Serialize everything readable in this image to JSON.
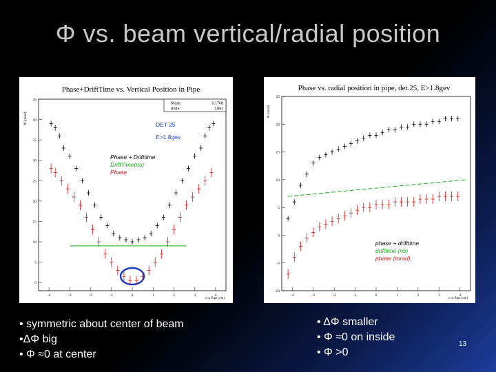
{
  "slide_title": "Φ vs. beam vertical/radial position",
  "left_plot": {
    "title": "Phase+DriftTime vs. Vertical Position in Pipe",
    "y_axis_label": "Φ (mrad)",
    "x_axis_label": "y in Pipe (cm)",
    "stats": [
      {
        "label": "Mean",
        "value": "0.1768"
      },
      {
        "label": "RMS",
        "value": "3.091"
      }
    ],
    "annotations": {
      "det": "DET 25",
      "energy": "E>1.8gev"
    },
    "legend": [
      {
        "text": "Phase + Drifttime",
        "color": "#000000"
      },
      {
        "text": "DriftTime(ns)",
        "color": "#18b018"
      },
      {
        "text": "Phase",
        "color": "#d01818"
      }
    ],
    "y_ticks": [
      "45",
      "40",
      "35",
      "30",
      "25",
      "20",
      "15",
      "10",
      "5",
      "0"
    ],
    "x_ticks": [
      "-4",
      "-3",
      "-2",
      "-1",
      "0",
      "1",
      "2",
      "3",
      "4"
    ]
  },
  "right_plot": {
    "title": "Phase vs. radial position in pipe, det.25, E>1.8gev",
    "y_axis_label": "Φ (mrad)",
    "x_axis_label": "x in Pipe (cm)",
    "legend": [
      {
        "text": "phase + drifttime",
        "color": "#000000"
      },
      {
        "text": "drifttime (ns)",
        "color": "#18b018"
      },
      {
        "text": "phase (mrad)",
        "color": "#d01818"
      }
    ],
    "y_ticks": [
      "25",
      "20",
      "15",
      "10",
      "5",
      "0",
      "-5",
      "-10"
    ],
    "x_ticks": [
      "-4",
      "-3",
      "-2",
      "-1",
      "0",
      "1",
      "2",
      "3",
      "4"
    ]
  },
  "bullets_left": [
    "• symmetric about center of beam",
    "•ΔΦ big",
    "• Φ ≈0 at center"
  ],
  "bullets_right": [
    "• ΔΦ smaller",
    "• Φ ≈0 on inside",
    "• Φ >0"
  ],
  "page_number": "13",
  "chart_data": [
    {
      "type": "scatter",
      "title": "Phase+DriftTime vs. Vertical Position in Pipe",
      "xlabel": "y in Pipe (cm)",
      "ylabel": "Φ (mrad)",
      "xlim": [
        -4.5,
        4.5
      ],
      "ylim": [
        -2,
        45
      ],
      "series": [
        {
          "name": "Phase + Drifttime",
          "color": "#000000",
          "x": [
            -3.9,
            -3.7,
            -3.5,
            -3.3,
            -3.0,
            -2.7,
            -2.4,
            -2.1,
            -1.8,
            -1.5,
            -1.2,
            -0.9,
            -0.6,
            -0.3,
            0.0,
            0.3,
            0.6,
            0.9,
            1.2,
            1.5,
            1.8,
            2.1,
            2.4,
            2.7,
            3.0,
            3.3,
            3.5,
            3.7,
            3.9
          ],
          "y": [
            39,
            38,
            36,
            33,
            31,
            28,
            25,
            22,
            19,
            16,
            14,
            12,
            11,
            10.5,
            10,
            10.5,
            11,
            12,
            14,
            16,
            19,
            22,
            25,
            28,
            31,
            33,
            36,
            38,
            39
          ]
        },
        {
          "name": "DriftTime(ns)",
          "color": "#18b018",
          "x": [
            -3.0,
            2.6
          ],
          "y": [
            9,
            9
          ]
        },
        {
          "name": "Phase",
          "color": "#d01818",
          "x": [
            -3.9,
            -3.7,
            -3.4,
            -3.1,
            -2.8,
            -2.5,
            -2.2,
            -1.9,
            -1.6,
            -1.3,
            -1.0,
            -0.7,
            -0.4,
            -0.1,
            0.2,
            0.5,
            0.8,
            1.1,
            1.4,
            1.7,
            2.0,
            2.3,
            2.6,
            2.9,
            3.2,
            3.5,
            3.8
          ],
          "y": [
            28,
            27,
            25,
            23,
            21,
            19,
            16,
            13,
            10,
            7,
            5,
            3,
            1.5,
            0.5,
            0.5,
            1.5,
            3,
            5,
            7,
            10,
            13,
            16,
            19,
            21,
            23,
            25,
            27
          ]
        }
      ]
    },
    {
      "type": "scatter",
      "title": "Phase vs. radial position in pipe, det.25, E>1.8gev",
      "xlabel": "x in Pipe (cm)",
      "ylabel": "Φ (mrad)",
      "xlim": [
        -4.5,
        4.5
      ],
      "ylim": [
        -10,
        25
      ],
      "series": [
        {
          "name": "phase + drifttime",
          "color": "#000000",
          "x": [
            -4.2,
            -3.9,
            -3.6,
            -3.3,
            -3.0,
            -2.7,
            -2.4,
            -2.1,
            -1.8,
            -1.5,
            -1.2,
            -0.9,
            -0.6,
            -0.3,
            0.0,
            0.3,
            0.6,
            0.9,
            1.2,
            1.5,
            1.8,
            2.1,
            2.4,
            2.7,
            3.0,
            3.3,
            3.6,
            3.9
          ],
          "y": [
            3,
            6,
            9,
            11,
            13,
            14,
            14.5,
            15,
            15.5,
            16,
            16.5,
            17,
            17.5,
            18,
            18,
            18.5,
            19,
            19,
            19.5,
            19.5,
            20,
            20,
            20,
            20.5,
            20.5,
            21,
            21,
            21
          ]
        },
        {
          "name": "drifttime (ns)",
          "color": "#18b018",
          "x": [
            -4.2,
            4.3
          ],
          "y": [
            7,
            10
          ]
        },
        {
          "name": "phase (mrad)",
          "color": "#d01818",
          "x": [
            -4.2,
            -3.9,
            -3.6,
            -3.3,
            -3.0,
            -2.7,
            -2.4,
            -2.1,
            -1.8,
            -1.5,
            -1.2,
            -0.9,
            -0.6,
            -0.3,
            0.0,
            0.3,
            0.6,
            0.9,
            1.2,
            1.5,
            1.8,
            2.1,
            2.4,
            2.7,
            3.0,
            3.3,
            3.6,
            3.9
          ],
          "y": [
            -7,
            -4,
            -2,
            -0.5,
            0.5,
            1.5,
            2,
            2.5,
            3,
            3.5,
            4,
            4.5,
            5,
            5,
            5.5,
            5.5,
            5.5,
            6,
            6,
            6,
            6,
            6.5,
            6.5,
            6.5,
            7,
            7,
            7,
            7
          ]
        }
      ]
    }
  ]
}
